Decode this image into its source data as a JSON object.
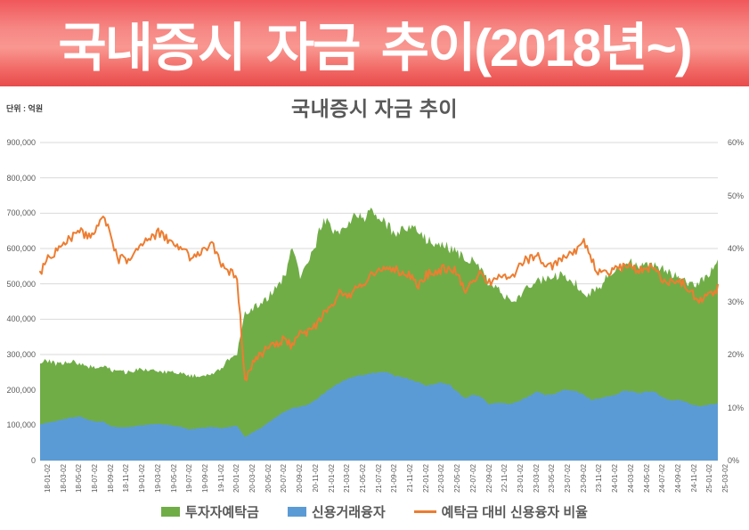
{
  "banner": {
    "title": "국내증시 자금 추이(2018년~)",
    "bg_top_color": "#f0575b",
    "bg_mid_color": "#f99790",
    "bg_bottom_color": "#e74c4b",
    "text_color": "#ffffff"
  },
  "chart": {
    "title": "국내증시 자금 추이",
    "unit_label": "단위 : 억원",
    "title_color": "#595959",
    "axis_text_color": "#595959",
    "gridline_color": "#d9d9d9",
    "legend": [
      {
        "label": "투자자예탁금",
        "color": "#70ad47",
        "marker": "square"
      },
      {
        "label": "신용거래융자",
        "color": "#5b9bd5",
        "marker": "square"
      },
      {
        "label": "예탁금 대비 신용융자 비율",
        "color": "#ed7d31",
        "marker": "line"
      }
    ]
  },
  "chart_data": {
    "type": "area",
    "subtype": "overlapping areas + line on secondary axis",
    "title": "국내증시 자금 추이",
    "unit": "억원",
    "x_monthly_start": "2018-01",
    "x_monthly_end": "2025-03",
    "x_tick_labels": [
      "18-01-02",
      "18-03-02",
      "18-05-02",
      "18-07-02",
      "18-09-02",
      "18-11-02",
      "19-01-02",
      "19-03-02",
      "19-05-02",
      "19-07-02",
      "19-09-02",
      "19-11-02",
      "20-01-02",
      "20-03-02",
      "20-05-02",
      "20-07-02",
      "20-09-02",
      "20-11-02",
      "21-01-02",
      "21-03-02",
      "21-05-02",
      "21-07-02",
      "21-09-02",
      "21-11-02",
      "22-01-02",
      "22-03-02",
      "22-05-02",
      "22-07-02",
      "22-09-02",
      "22-11-02",
      "23-01-02",
      "23-03-02",
      "23-05-02",
      "23-07-02",
      "23-09-02",
      "23-11-02",
      "24-01-02",
      "24-03-02",
      "24-05-02",
      "24-07-02",
      "24-09-02",
      "24-11-02",
      "25-01-02",
      "25-03-02"
    ],
    "y_left": {
      "min": 0,
      "max": 900000,
      "step": 100000,
      "labels": [
        "0",
        "100,000",
        "200,000",
        "300,000",
        "400,000",
        "500,000",
        "600,000",
        "700,000",
        "800,000",
        "900,000"
      ]
    },
    "y_right": {
      "min": 0,
      "max": 60,
      "step": 10,
      "labels": [
        "0%",
        "10%",
        "20%",
        "30%",
        "40%",
        "50%",
        "60%"
      ]
    },
    "grid": true,
    "legend_position": "bottom",
    "series": [
      {
        "name": "투자자예탁금",
        "type": "area",
        "axis": "left",
        "color": "#70ad47",
        "monthly_values": [
          278000,
          282000,
          274000,
          277000,
          280000,
          274000,
          267000,
          262000,
          265000,
          256000,
          252000,
          249000,
          254000,
          259000,
          254000,
          253000,
          249000,
          251000,
          246000,
          239000,
          241000,
          242000,
          246000,
          262000,
          288000,
          302000,
          415000,
          432000,
          441000,
          462000,
          498000,
          516000,
          601000,
          522000,
          567000,
          618000,
          688000,
          651000,
          638000,
          672000,
          698000,
          681000,
          705000,
          691000,
          665000,
          645000,
          652000,
          661000,
          655000,
          621000,
          616000,
          613000,
          601000,
          586000,
          571000,
          566000,
          541000,
          496000,
          486000,
          466000,
          448000,
          471000,
          492000,
          506000,
          512000,
          516000,
          526000,
          512000,
          501000,
          466000,
          476000,
          486000,
          521000,
          536000,
          551000,
          561000,
          546000,
          551000,
          556000,
          541000,
          531000,
          516000,
          506000,
          496000,
          511000,
          531000,
          561000
        ]
      },
      {
        "name": "신용거래융자",
        "type": "area",
        "axis": "left",
        "color": "#5b9bd5",
        "monthly_values": [
          103000,
          107000,
          111000,
          117000,
          122000,
          125000,
          116000,
          110000,
          110000,
          97000,
          94000,
          94000,
          97000,
          100000,
          102000,
          104000,
          101000,
          98000,
          95000,
          88000,
          91000,
          93000,
          95000,
          92000,
          95000,
          98000,
          66000,
          80000,
          92000,
          108000,
          124000,
          138000,
          148000,
          152000,
          158000,
          172000,
          190000,
          205000,
          220000,
          232000,
          238000,
          243000,
          246000,
          250000,
          251000,
          240000,
          234000,
          230000,
          221000,
          211000,
          216000,
          221000,
          214000,
          193000,
          176000,
          186000,
          181000,
          158000,
          164000,
          161000,
          161000,
          171000,
          182000,
          196000,
          186000,
          186000,
          196000,
          201000,
          196000,
          186000,
          171000,
          176000,
          181000,
          186000,
          196000,
          196000,
          191000,
          196000,
          196000,
          179000,
          171000,
          171000,
          166000,
          156000,
          154000,
          158000,
          161000
        ]
      },
      {
        "name": "예탁금 대비 신용융자 비율",
        "type": "line",
        "axis": "right",
        "color": "#ed7d31",
        "unit": "%",
        "monthly_values": [
          35.5,
          38.0,
          39.5,
          41.0,
          42.0,
          43.5,
          42.0,
          43.5,
          46.5,
          42.0,
          38.0,
          38.0,
          39.5,
          41.0,
          42.0,
          43.0,
          42.0,
          40.5,
          40.5,
          38.0,
          39.0,
          40.0,
          40.5,
          37.0,
          35.5,
          34.5,
          15.0,
          18.5,
          20.0,
          21.5,
          22.0,
          23.0,
          21.5,
          24.5,
          24.0,
          25.5,
          27.5,
          29.5,
          31.5,
          30.5,
          32.5,
          33.5,
          35.0,
          35.5,
          36.0,
          36.0,
          35.5,
          35.0,
          33.0,
          35.0,
          35.5,
          36.0,
          36.5,
          35.5,
          31.5,
          34.0,
          35.5,
          33.5,
          35.0,
          34.5,
          35.0,
          37.5,
          38.0,
          39.0,
          37.0,
          36.5,
          38.0,
          39.0,
          39.5,
          41.5,
          37.5,
          35.5,
          35.5,
          36.0,
          36.5,
          36.5,
          36.0,
          36.5,
          36.0,
          34.0,
          33.5,
          34.0,
          33.0,
          31.0,
          30.0,
          31.5,
          32.5
        ]
      }
    ]
  }
}
